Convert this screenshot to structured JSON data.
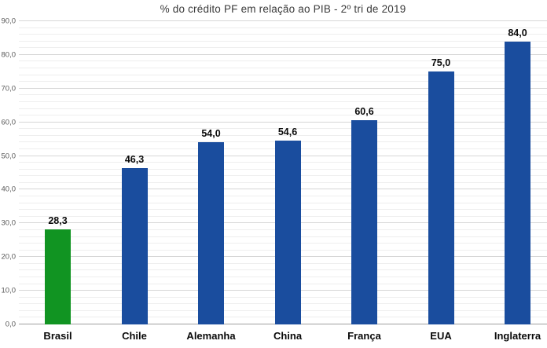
{
  "page": {
    "background": "#ffffff"
  },
  "chart_data": {
    "type": "bar",
    "title": "% do crédito PF em relação ao PIB - 2º tri de 2019",
    "categories": [
      "Brasil",
      "Chile",
      "Alemanha",
      "China",
      "França",
      "EUA",
      "Inglaterra"
    ],
    "values": [
      28.3,
      46.3,
      54.0,
      54.6,
      60.6,
      75.0,
      84.0
    ],
    "value_labels": [
      "28,3",
      "46,3",
      "54,0",
      "54,6",
      "60,6",
      "75,0",
      "84,0"
    ],
    "bar_colors": [
      "#119422",
      "#1A4D9E",
      "#1A4D9E",
      "#1A4D9E",
      "#1A4D9E",
      "#1A4D9E",
      "#1A4D9E"
    ],
    "xlabel": "",
    "ylabel": "",
    "ylim": [
      0,
      90
    ],
    "ytick_step": 10,
    "ytick_labels": [
      "0,0",
      "10,0",
      "20,0",
      "30,0",
      "40,0",
      "50,0",
      "60,0",
      "70,0",
      "80,0",
      "90,0"
    ],
    "minor_grid_step": 2,
    "grid": true,
    "legend": null
  },
  "colors": {
    "highlight_bar": "#119422",
    "default_bar": "#1A4D9E",
    "major_gridline": "#d6d6d6",
    "minor_gridline": "#eeeeee",
    "axis_line": "#9e9e9e",
    "title_text": "#3a3a3a",
    "tick_text": "#595959",
    "value_text": "#0a0a0a",
    "category_text": "#0a0a0a"
  }
}
